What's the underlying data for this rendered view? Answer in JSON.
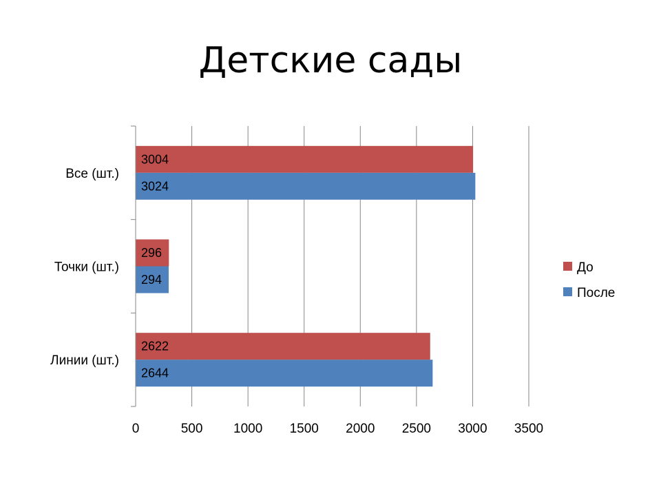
{
  "slide": {
    "title": "Детские сады"
  },
  "chart_data": {
    "type": "bar",
    "orientation": "horizontal",
    "title": "Детские сады",
    "categories": [
      "Все (шт.)",
      "Точки (шт.)",
      "Линии (шт.)"
    ],
    "series": [
      {
        "name": "До",
        "values": [
          3004,
          296,
          2622
        ],
        "color": "#C0504D"
      },
      {
        "name": "После",
        "values": [
          3024,
          294,
          2644
        ],
        "color": "#4F81BD"
      }
    ],
    "xlim": [
      0,
      3500
    ],
    "xticks": [
      0,
      500,
      1000,
      1500,
      2000,
      2500,
      3000,
      3500
    ],
    "grid": true,
    "legend": "right",
    "data_labels": true,
    "xlabel": "",
    "ylabel": ""
  }
}
